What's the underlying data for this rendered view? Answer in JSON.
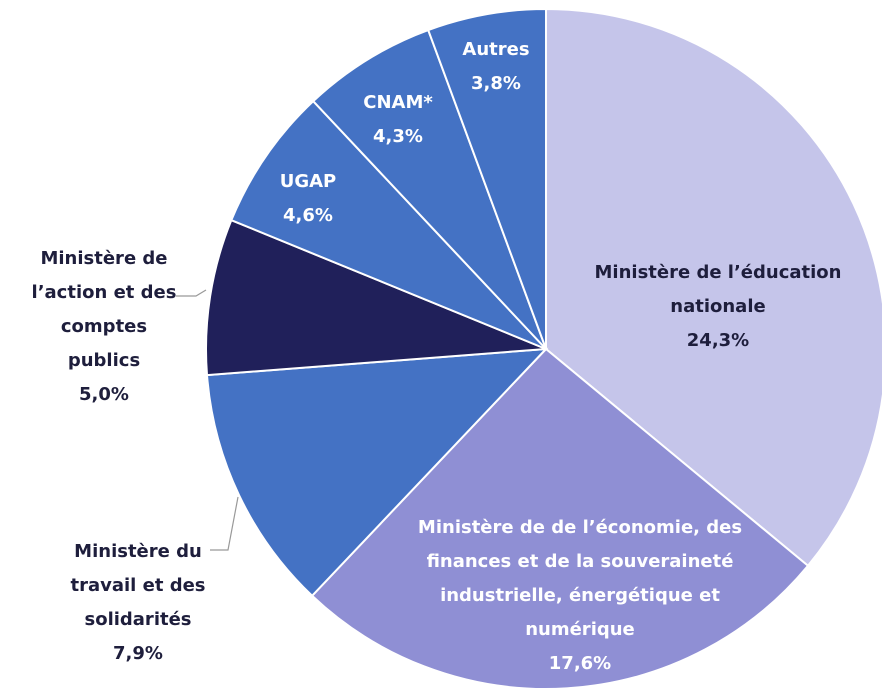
{
  "chart_data": {
    "type": "pie",
    "categories": [
      "Ministère de l’éducation nationale",
      "Ministère de de l’économie, des finances et de la souveraineté industrielle, énergétique et numérique",
      "Ministère du travail et des solidarités",
      "Ministère de l’action et des comptes publics",
      "UGAP",
      "CNAM*",
      "Autres"
    ],
    "values": [
      24.3,
      17.6,
      7.9,
      5.0,
      4.6,
      4.3,
      3.8
    ],
    "value_labels": [
      "24,3%",
      "17,6%",
      "7,9%",
      "5,0%",
      "4,6%",
      "4,3%",
      "3,8%"
    ],
    "colors": [
      "#c5c5ea",
      "#8f8fd4",
      "#4472c4",
      "#20205a",
      "#4472c4",
      "#4472c4",
      "#4472c4"
    ]
  }
}
